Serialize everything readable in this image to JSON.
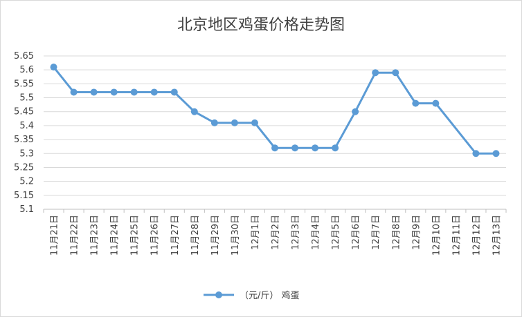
{
  "chart_data": {
    "type": "line",
    "title": "北京地区鸡蛋价格走势图",
    "xlabel": "",
    "ylabel": "",
    "categories": [
      "11月21日",
      "11月22日",
      "11月23日",
      "11月24日",
      "11月25日",
      "11月26日",
      "11月27日",
      "11月28日",
      "11月29日",
      "11月30日",
      "12月1日",
      "12月2日",
      "12月3日",
      "12月4日",
      "12月5日",
      "12月6日",
      "12月7日",
      "12月8日",
      "12月9日",
      "12月10日",
      "12月11日",
      "12月12日",
      "12月13日"
    ],
    "series": [
      {
        "name": "（元/斤） 鸡蛋",
        "color": "#5b9bd5",
        "values": [
          5.61,
          5.52,
          5.52,
          5.52,
          5.52,
          5.52,
          5.52,
          5.45,
          5.41,
          5.41,
          5.41,
          5.32,
          5.32,
          5.32,
          5.32,
          5.45,
          5.59,
          5.59,
          5.48,
          5.48,
          null,
          5.3,
          5.3
        ]
      }
    ],
    "ylim": [
      5.1,
      5.65
    ],
    "yticks": [
      "5.1",
      "5.15",
      "5.2",
      "5.25",
      "5.3",
      "5.35",
      "5.4",
      "5.45",
      "5.5",
      "5.55",
      "5.6",
      "5.65"
    ],
    "grid": true,
    "legend_position": "bottom"
  }
}
